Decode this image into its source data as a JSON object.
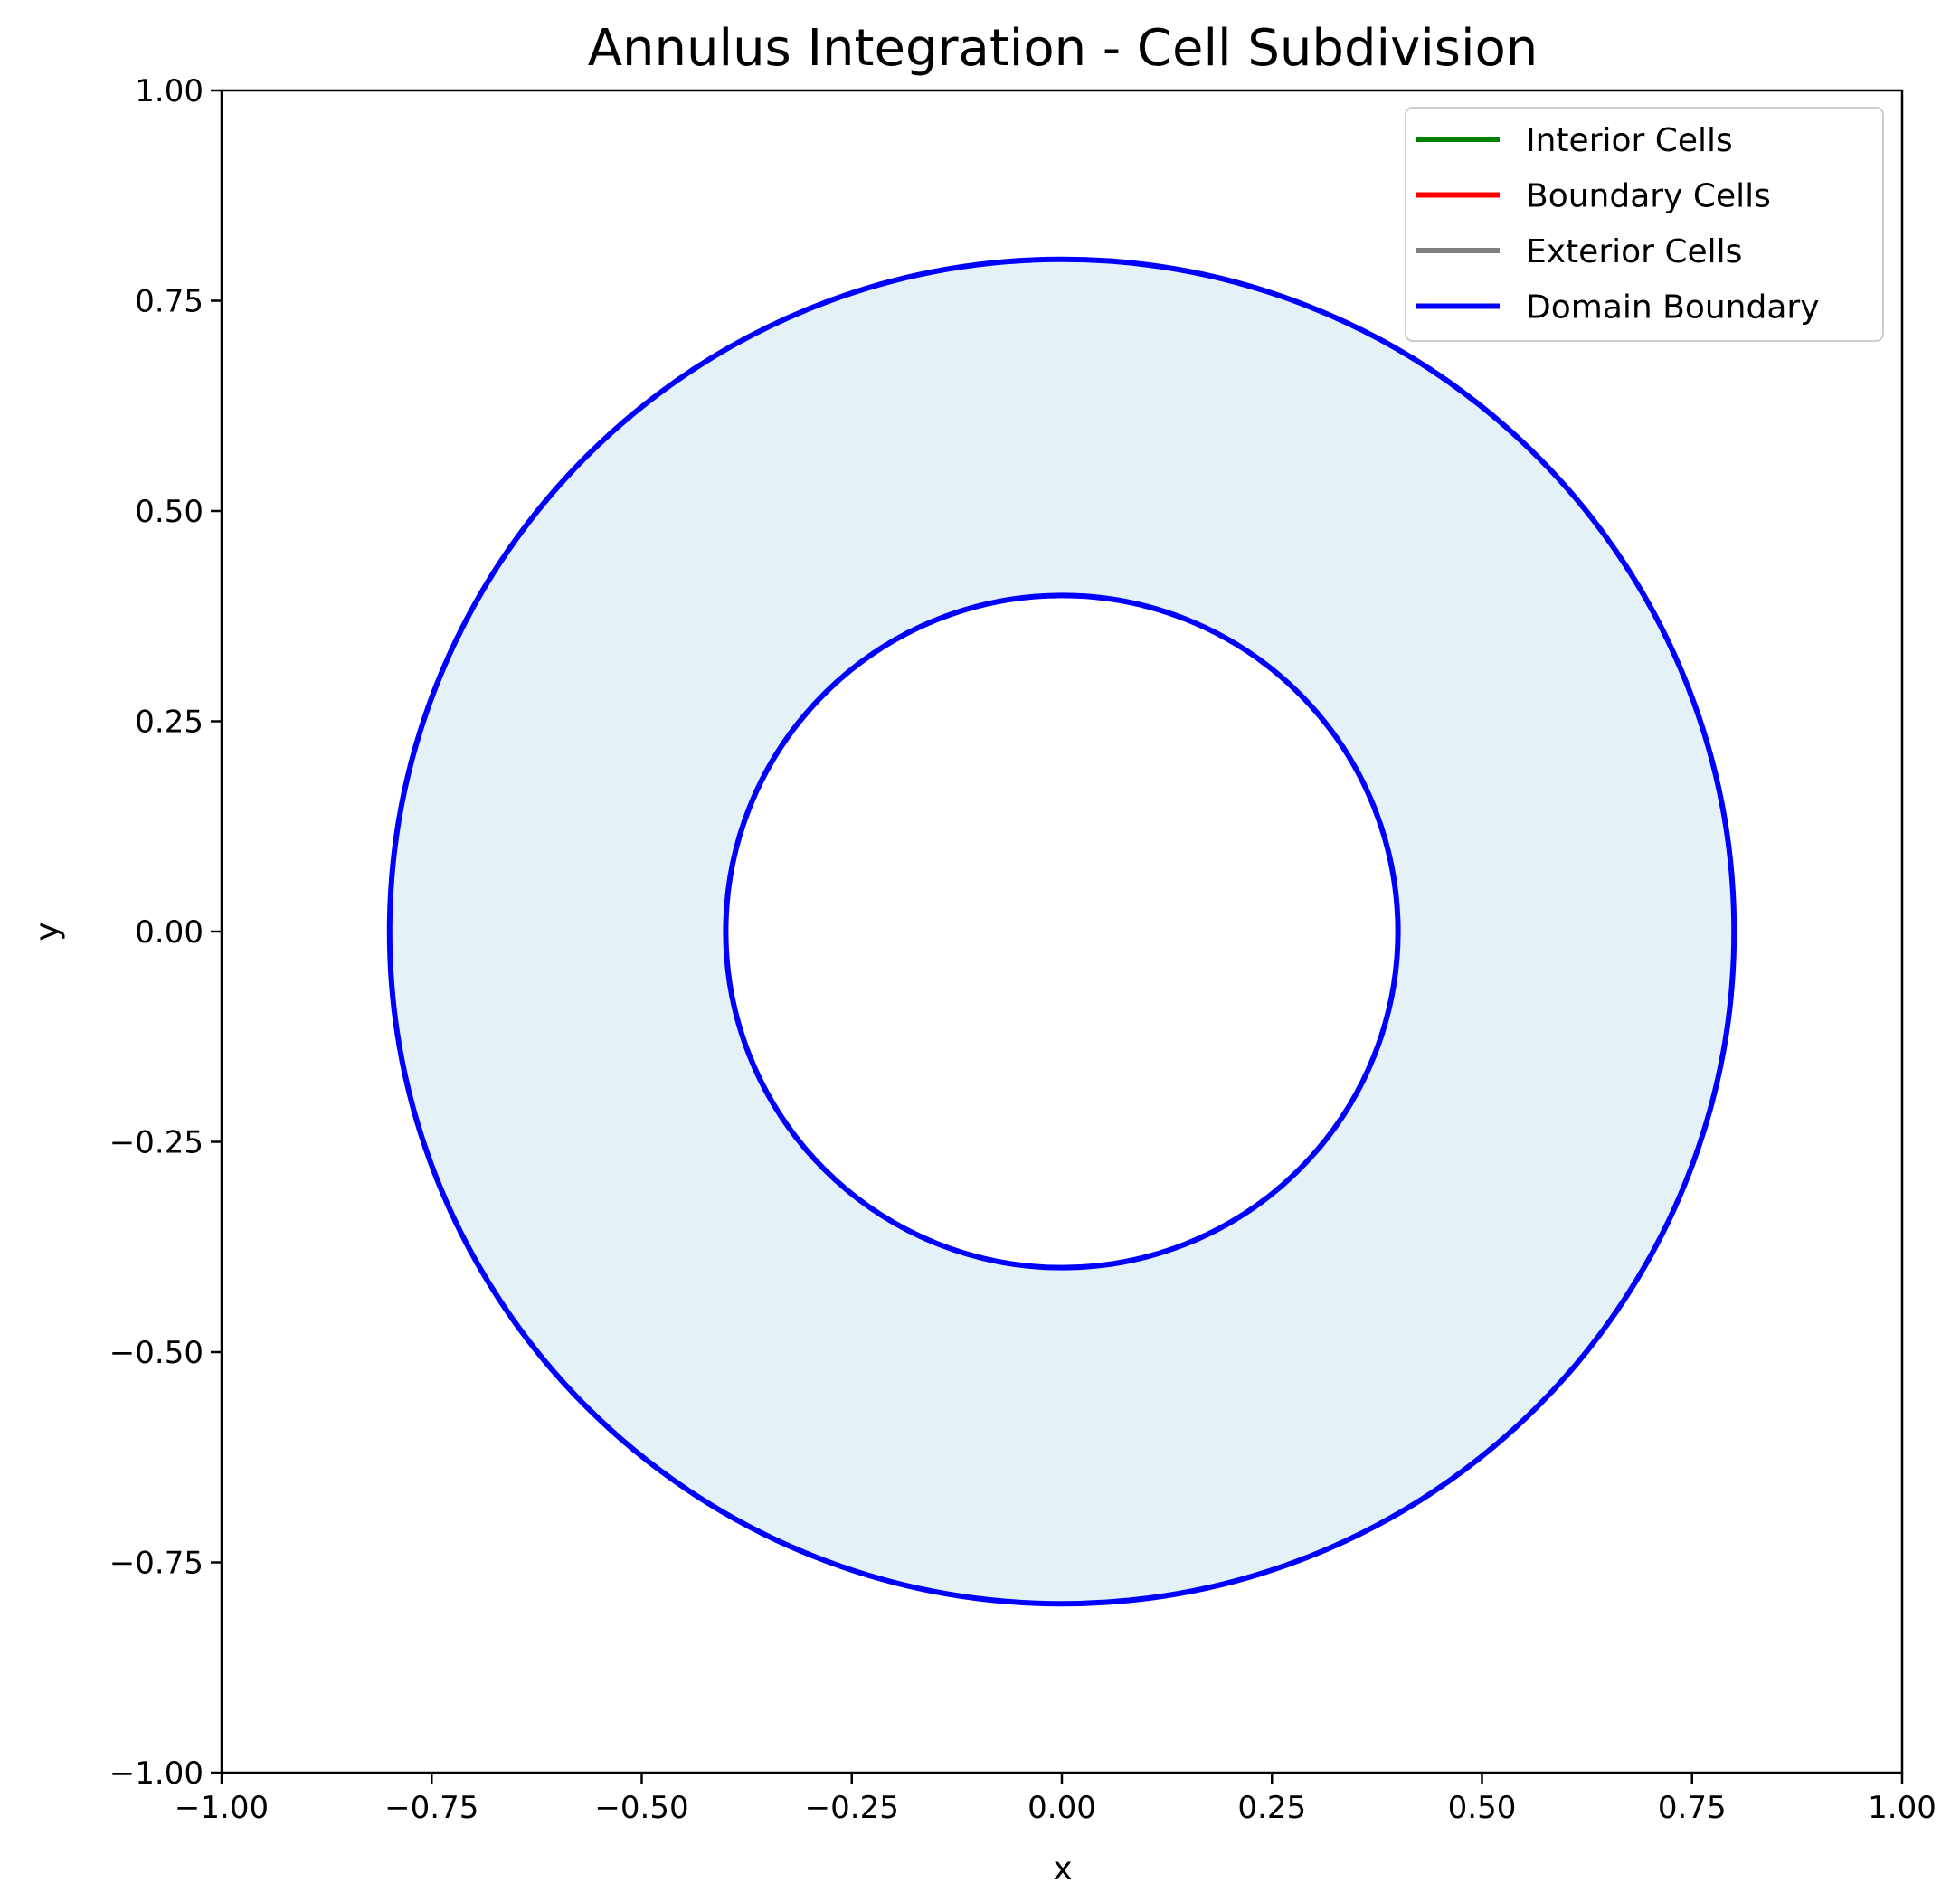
{
  "chart_data": {
    "type": "line",
    "title": "Annulus Integration - Cell Subdivision",
    "xlabel": "x",
    "ylabel": "y",
    "xlim": [
      -1.0,
      1.0
    ],
    "ylim": [
      -1.0,
      1.0
    ],
    "x_ticks": [
      -1.0,
      -0.75,
      -0.5,
      -0.25,
      0.0,
      0.25,
      0.5,
      0.75,
      1.0
    ],
    "y_ticks": [
      -1.0,
      -0.75,
      -0.5,
      -0.25,
      0.0,
      0.25,
      0.5,
      0.75,
      1.0
    ],
    "x_tick_labels": [
      "−1.00",
      "−0.75",
      "−0.50",
      "−0.25",
      "0.00",
      "0.25",
      "0.50",
      "0.75",
      "1.00"
    ],
    "y_tick_labels": [
      "−1.00",
      "−0.75",
      "−0.50",
      "−0.25",
      "0.00",
      "0.25",
      "0.50",
      "0.75",
      "1.00"
    ],
    "grid": false,
    "legend_position": "top-right",
    "annulus": {
      "center": [
        0.0,
        0.0
      ],
      "inner_radius": 0.4,
      "outer_radius": 0.8,
      "fill_color": "#e4f2f8"
    },
    "series": [
      {
        "name": "Interior Cells",
        "color": "#008000",
        "points": []
      },
      {
        "name": "Boundary Cells",
        "color": "#ff0000",
        "points": []
      },
      {
        "name": "Exterior Cells",
        "color": "#808080",
        "points": []
      },
      {
        "name": "Domain Boundary",
        "color": "#0000ff",
        "circles": [
          0.8,
          0.4
        ]
      }
    ]
  }
}
